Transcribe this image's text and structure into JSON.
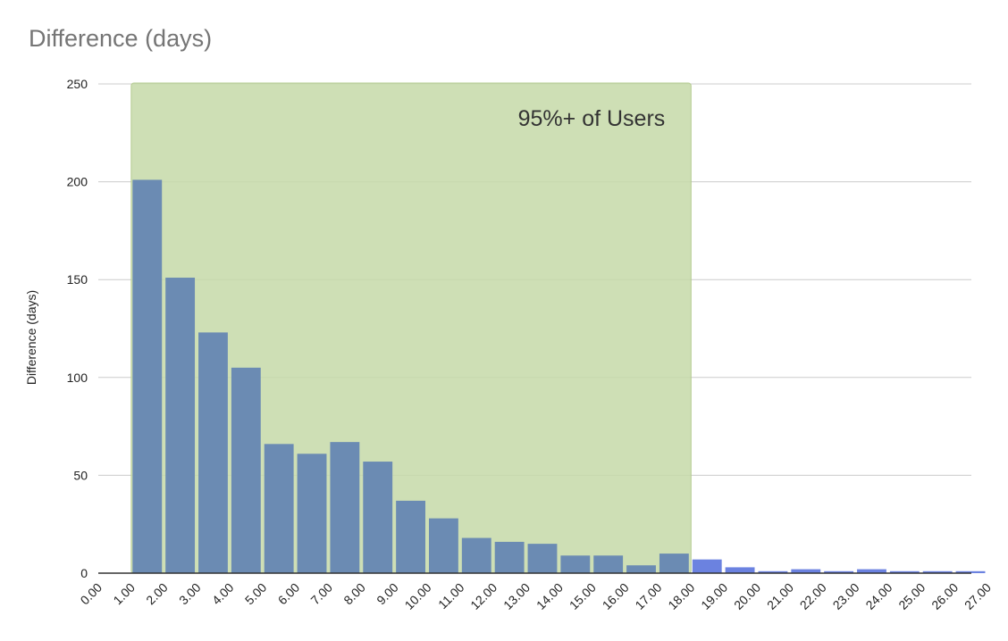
{
  "chart_data": {
    "type": "bar",
    "title": "Difference (days)",
    "ylabel": "Difference (days)",
    "xlabel": "",
    "x_tick_labels": [
      "0.00",
      "1.00",
      "2.00",
      "3.00",
      "4.00",
      "5.00",
      "6.00",
      "7.00",
      "8.00",
      "9.00",
      "10.00",
      "11.00",
      "12.00",
      "13.00",
      "14.00",
      "15.00",
      "16.00",
      "17.00",
      "18.00",
      "19.00",
      "20.00",
      "21.00",
      "22.00",
      "23.00",
      "24.00",
      "25.00",
      "26.00",
      "27.00"
    ],
    "bins": [
      {
        "x0": 1,
        "value": 201
      },
      {
        "x0": 2,
        "value": 151
      },
      {
        "x0": 3,
        "value": 123
      },
      {
        "x0": 4,
        "value": 105
      },
      {
        "x0": 5,
        "value": 66
      },
      {
        "x0": 6,
        "value": 61
      },
      {
        "x0": 7,
        "value": 67
      },
      {
        "x0": 8,
        "value": 57
      },
      {
        "x0": 9,
        "value": 37
      },
      {
        "x0": 10,
        "value": 28
      },
      {
        "x0": 11,
        "value": 18
      },
      {
        "x0": 12,
        "value": 16
      },
      {
        "x0": 13,
        "value": 15
      },
      {
        "x0": 14,
        "value": 9
      },
      {
        "x0": 15,
        "value": 9
      },
      {
        "x0": 16,
        "value": 4
      },
      {
        "x0": 17,
        "value": 10
      },
      {
        "x0": 18,
        "value": 7
      },
      {
        "x0": 19,
        "value": 3
      },
      {
        "x0": 20,
        "value": 1
      },
      {
        "x0": 21,
        "value": 2
      },
      {
        "x0": 22,
        "value": 1
      },
      {
        "x0": 23,
        "value": 2
      },
      {
        "x0": 24,
        "value": 1
      },
      {
        "x0": 25,
        "value": 1
      },
      {
        "x0": 26,
        "value": 1
      }
    ],
    "ylim": [
      0,
      250
    ],
    "y_ticks": [
      0,
      50,
      100,
      150,
      200,
      250
    ],
    "grid": true,
    "highlight": {
      "x_start": 1,
      "x_end": 18,
      "label": "95%+ of Users",
      "color": "#c5d9a8"
    },
    "bar_color": "#6b8bb3",
    "bar_color_outside": "#6b82e0"
  }
}
